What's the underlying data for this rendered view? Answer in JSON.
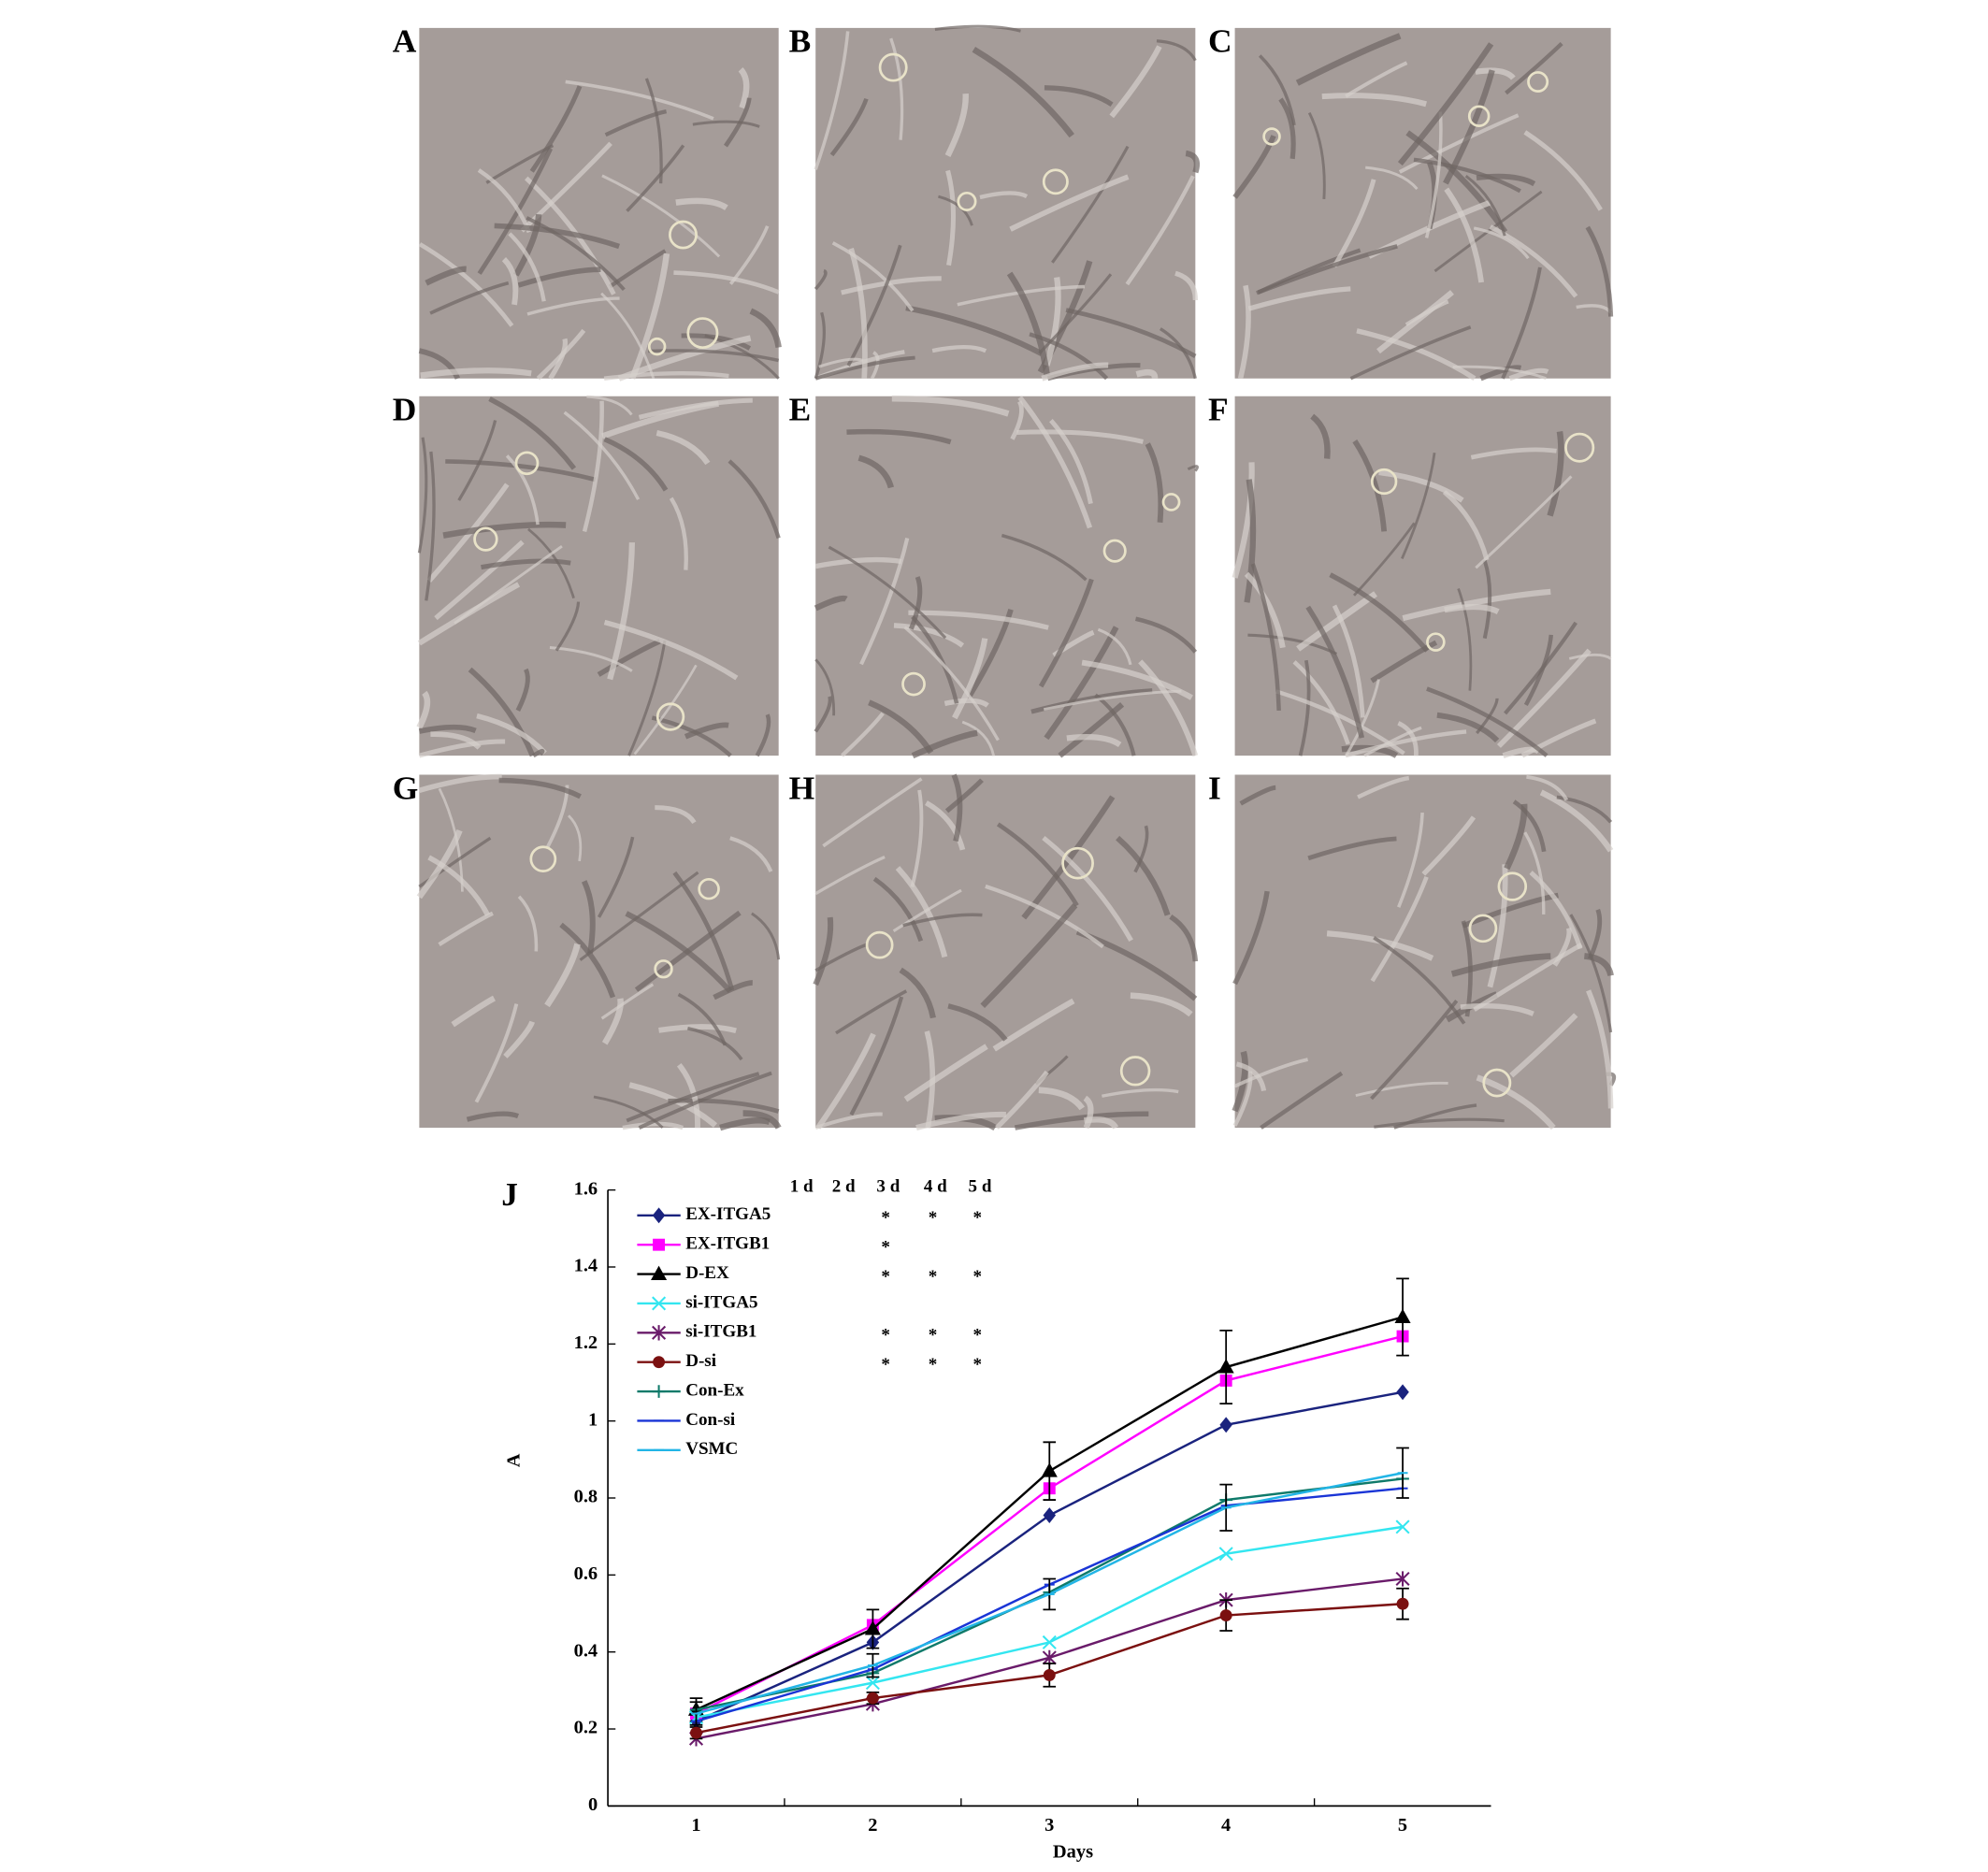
{
  "panels": [
    {
      "label": "A"
    },
    {
      "label": "B"
    },
    {
      "label": "C"
    },
    {
      "label": "D"
    },
    {
      "label": "E"
    },
    {
      "label": "F"
    },
    {
      "label": "G"
    },
    {
      "label": "H"
    },
    {
      "label": "I"
    }
  ],
  "chart_data": {
    "type": "line",
    "panel_label": "J",
    "x_label": "Days",
    "y_label": "A",
    "categories": [
      "1",
      "2",
      "3",
      "4",
      "5"
    ],
    "ylim": [
      0,
      1.6
    ],
    "yticks": [
      0,
      0.2,
      0.4,
      0.6,
      0.8,
      1,
      1.2,
      1.4,
      1.6
    ],
    "series": [
      {
        "name": "EX-ITGA5",
        "color": "#1a237e",
        "marker": "diamond",
        "values": [
          0.22,
          0.425,
          0.755,
          0.99,
          1.075
        ]
      },
      {
        "name": "EX-ITGB1",
        "color": "#ff00ff",
        "marker": "square",
        "values": [
          0.24,
          0.47,
          0.825,
          1.105,
          1.22
        ]
      },
      {
        "name": "D-EX",
        "color": "#000000",
        "marker": "triangle",
        "values": [
          0.25,
          0.46,
          0.87,
          1.14,
          1.27
        ],
        "errors": [
          0.03,
          0.05,
          0.075,
          0.095,
          0.1
        ]
      },
      {
        "name": "si-ITGA5",
        "color": "#33e6f0",
        "marker": "x",
        "values": [
          0.23,
          0.32,
          0.425,
          0.655,
          0.725
        ]
      },
      {
        "name": "si-ITGB1",
        "color": "#6a1b6a",
        "marker": "star",
        "values": [
          0.175,
          0.265,
          0.385,
          0.535,
          0.59
        ]
      },
      {
        "name": "D-si",
        "color": "#7b1010",
        "marker": "circle",
        "values": [
          0.19,
          0.28,
          0.34,
          0.495,
          0.525
        ],
        "errors": [
          0.015,
          0.015,
          0.03,
          0.04,
          0.04
        ]
      },
      {
        "name": "Con-Ex",
        "color": "#0f7a6a",
        "marker": "plus",
        "values": [
          0.25,
          0.345,
          0.555,
          0.795,
          0.85
        ]
      },
      {
        "name": "Con-si",
        "color": "#1a35d6",
        "marker": "dash",
        "values": [
          0.22,
          0.355,
          0.575,
          0.78,
          0.825
        ]
      },
      {
        "name": "VSMC",
        "color": "#22b5e6",
        "marker": "dash",
        "values": [
          0.24,
          0.365,
          0.55,
          0.775,
          0.865
        ],
        "errors": [
          0.03,
          0.03,
          0.04,
          0.06,
          0.065
        ]
      }
    ],
    "significance": {
      "columns": [
        "1 d",
        "2 d",
        "3 d",
        "4 d",
        "5 d"
      ],
      "rows": [
        [
          null,
          null,
          "*",
          "*",
          "*"
        ],
        [
          null,
          null,
          "*",
          null,
          null
        ],
        [
          null,
          null,
          "*",
          "*",
          "*"
        ],
        [
          null,
          null,
          null,
          null,
          null
        ],
        [
          null,
          null,
          "*",
          "*",
          "*"
        ],
        [
          null,
          null,
          "*",
          "*",
          "*"
        ]
      ]
    }
  }
}
